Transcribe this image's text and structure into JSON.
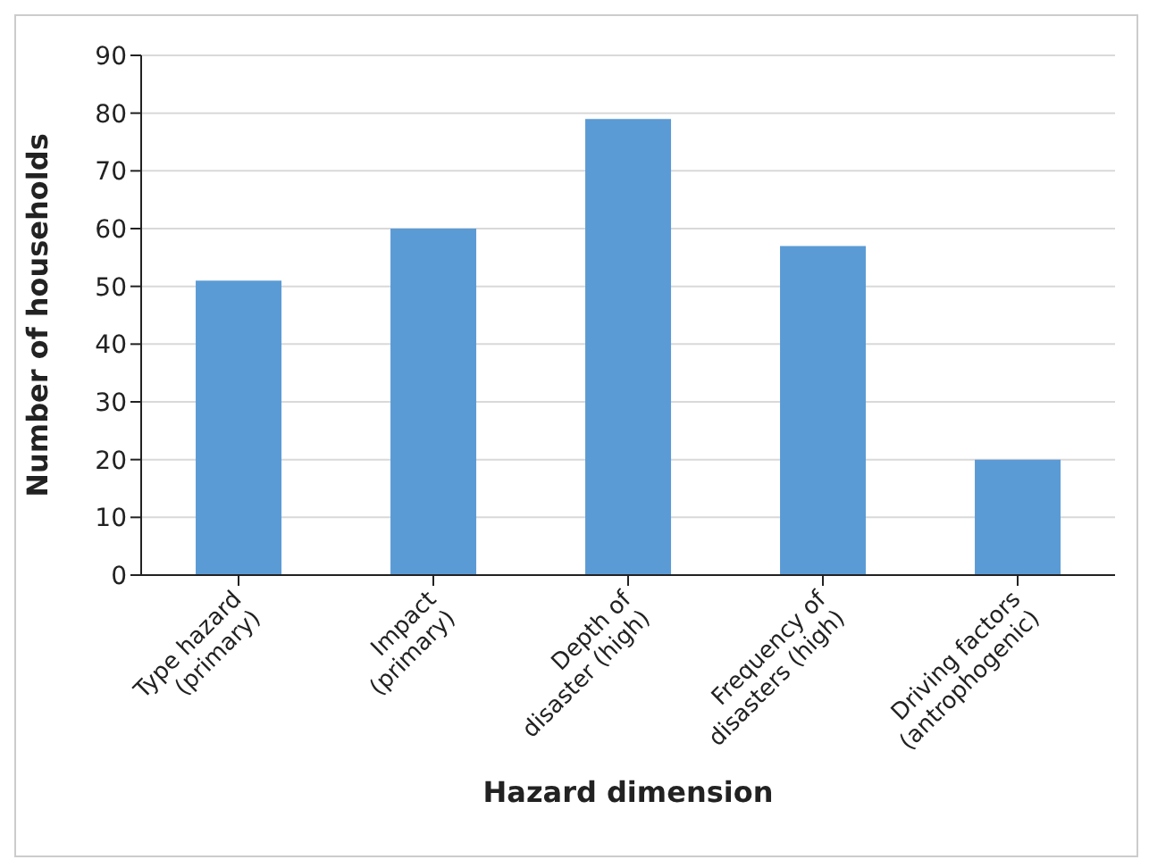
{
  "chart_data": {
    "type": "bar",
    "xlabel": "Hazard dimension",
    "ylabel": "Number of households",
    "categories": [
      "Type hazard\n(primary)",
      "Impact\n(primary)",
      "Depth of\ndisaster (high)",
      "Frequency of\ndisasters (high)",
      "Driving factors\n(antrophogenic)"
    ],
    "values": [
      51,
      60,
      79,
      57,
      20
    ],
    "color": "#5b9bd5",
    "ylim": [
      0,
      90
    ],
    "yticks": [
      0,
      10,
      20,
      30,
      40,
      50,
      60,
      70,
      80,
      90
    ],
    "grid": "y"
  }
}
